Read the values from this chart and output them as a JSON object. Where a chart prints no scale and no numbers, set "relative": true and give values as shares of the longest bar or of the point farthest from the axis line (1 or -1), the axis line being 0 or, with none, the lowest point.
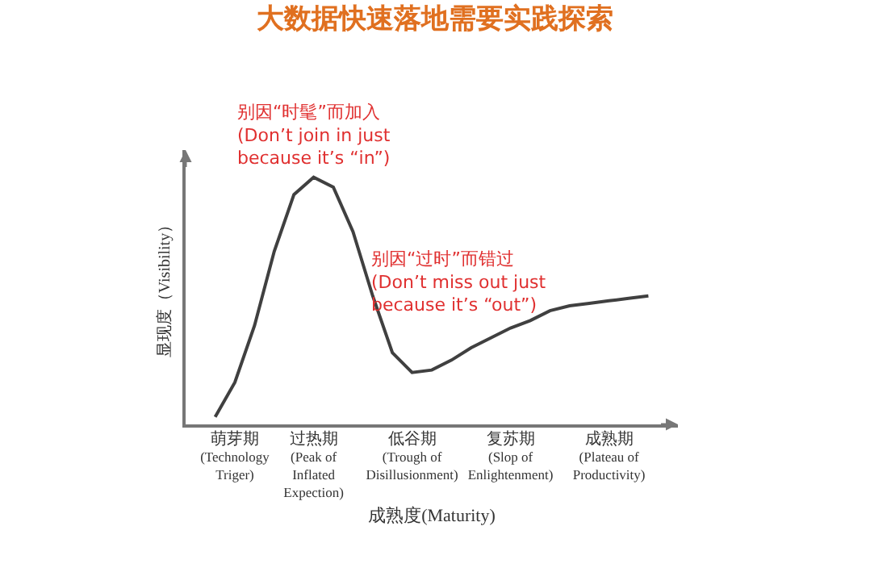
{
  "chart_data": {
    "type": "line",
    "title": "大数据快速落地需要实践探索",
    "xlabel": "成熟度(Maturity)",
    "ylabel": "显现度（Visibility）",
    "relative": true,
    "categories": [
      null,
      null,
      "萌芽期\n(Technology\nTriger)",
      null,
      null,
      null,
      "过热期\n(Peak of\nInflated\nExpection)",
      null,
      null,
      null,
      null,
      "低谷期\n(Trough of\nDisillusionment)",
      null,
      null,
      null,
      null,
      "复苏期\n(Slop of\nEnlightenment)",
      null,
      null,
      null,
      null,
      "成熟期\n(Plateau of\nProductivity)",
      null,
      null,
      null
    ],
    "series": [
      {
        "color": "#404040",
        "values": [
          null,
          0.03,
          0.17,
          0.4,
          0.7,
          0.93,
          1,
          0.96,
          0.78,
          0.52,
          0.29,
          0.21,
          0.22,
          0.26,
          0.31,
          0.35,
          0.39,
          0.42,
          0.46,
          0.48,
          0.49,
          0.5,
          0.51,
          0.52,
          null
        ]
      }
    ],
    "annotations": [
      "别因“时髦”而加入\n(Don’t join in just\nbecause it’s “in”)",
      "别因“过时”而错过\n(Don’t miss out just\nbecause it’s “out”)"
    ],
    "grid": false,
    "marker": "none",
    "line_style": "solid"
  }
}
